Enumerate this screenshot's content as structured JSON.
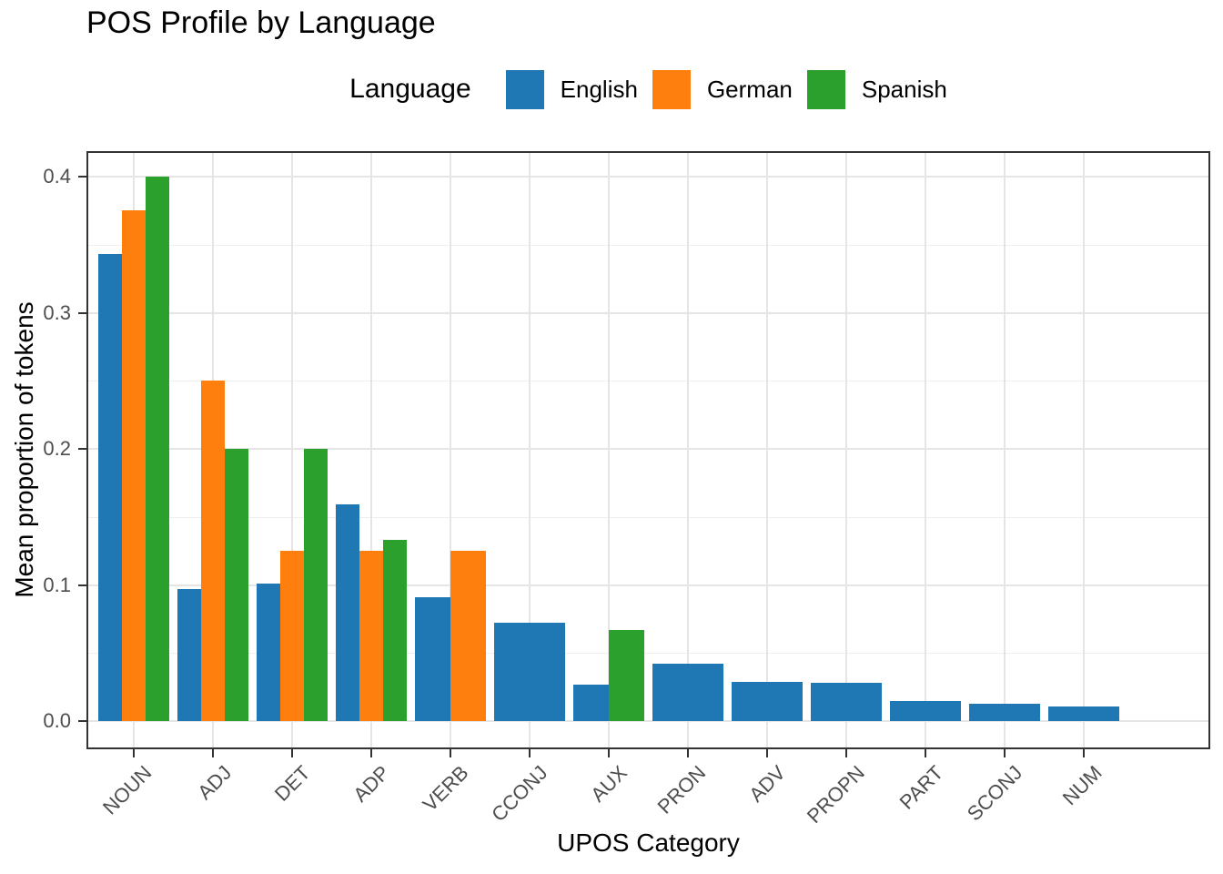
{
  "title": "POS Profile by Language",
  "legend": {
    "title": "Language",
    "entries": [
      {
        "label": "English",
        "color": "#1f77b4"
      },
      {
        "label": "German",
        "color": "#ff7f0e"
      },
      {
        "label": "Spanish",
        "color": "#2ca02c"
      }
    ]
  },
  "axes": {
    "x_title": "UPOS Category",
    "y_title": "Mean proportion of tokens",
    "y_tick_labels": [
      "0.0",
      "0.1",
      "0.2",
      "0.3",
      "0.4"
    ]
  },
  "chart_data": {
    "type": "bar",
    "title": "POS Profile by Language",
    "xlabel": "UPOS Category",
    "ylabel": "Mean proportion of tokens",
    "categories": [
      "NOUN",
      "ADJ",
      "DET",
      "ADP",
      "VERB",
      "CCONJ",
      "AUX",
      "PRON",
      "ADV",
      "PROPN",
      "PART",
      "SCONJ",
      "NUM"
    ],
    "series": [
      {
        "name": "English",
        "color": "#1f77b4",
        "values": [
          0.343,
          0.097,
          0.101,
          0.159,
          0.091,
          0.072,
          0.027,
          0.042,
          0.029,
          0.028,
          0.015,
          0.013,
          0.011
        ]
      },
      {
        "name": "German",
        "color": "#ff7f0e",
        "values": [
          0.375,
          0.25,
          0.125,
          0.125,
          0.125,
          null,
          null,
          null,
          null,
          null,
          null,
          null,
          null
        ]
      },
      {
        "name": "Spanish",
        "color": "#2ca02c",
        "values": [
          0.4,
          0.2,
          0.2,
          0.133,
          null,
          null,
          0.067,
          null,
          null,
          null,
          null,
          null,
          null
        ]
      }
    ],
    "ylim": [
      0,
      0.42
    ],
    "y_ticks": [
      0.0,
      0.1,
      0.2,
      0.3,
      0.4
    ],
    "y_minor_ticks": [
      0.05,
      0.15,
      0.25,
      0.35
    ],
    "grid": true,
    "legend_position": "top",
    "bar_grouping": "dodge",
    "x_label_angle": 45
  }
}
